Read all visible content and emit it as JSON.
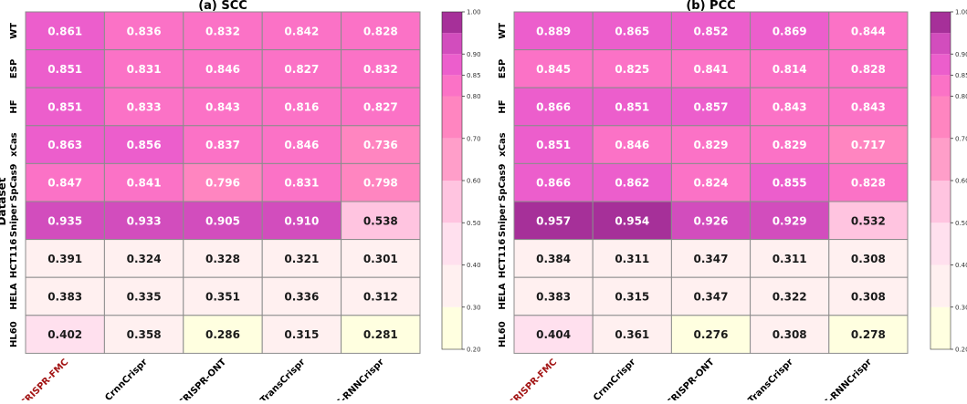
{
  "chart_data": [
    {
      "type": "heatmap",
      "title": "(a) SCC",
      "ylabel": "Dataset",
      "rows": [
        "WT",
        "ESP",
        "HF",
        "xCas",
        "SpCas9",
        "Sniper",
        "HCT116",
        "HELA",
        "HL60"
      ],
      "columns": [
        "CRISPR-FMC",
        "CrnnCrispr",
        "CRISPR-ONT",
        "TransCrispr",
        "C-RNNCrispr"
      ],
      "highlight_column": "CRISPR-FMC",
      "values": [
        [
          0.861,
          0.836,
          0.832,
          0.842,
          0.828
        ],
        [
          0.851,
          0.831,
          0.846,
          0.827,
          0.832
        ],
        [
          0.851,
          0.833,
          0.843,
          0.816,
          0.827
        ],
        [
          0.863,
          0.856,
          0.837,
          0.846,
          0.736
        ],
        [
          0.847,
          0.841,
          0.796,
          0.831,
          0.798
        ],
        [
          0.935,
          0.933,
          0.905,
          0.91,
          0.538
        ],
        [
          0.391,
          0.324,
          0.328,
          0.321,
          0.301
        ],
        [
          0.383,
          0.335,
          0.351,
          0.336,
          0.312
        ],
        [
          0.402,
          0.358,
          0.286,
          0.315,
          0.281
        ]
      ],
      "colorbar_range": [
        0.2,
        1.0
      ],
      "colorbar_ticks": [
        "1.00",
        "0.90",
        "0.85",
        "0.80",
        "0.70",
        "0.60",
        "0.50",
        "0.40",
        "0.30",
        "0.20"
      ]
    },
    {
      "type": "heatmap",
      "title": "(b) PCC",
      "ylabel": "",
      "rows": [
        "WT",
        "ESP",
        "HF",
        "xCas",
        "SpCas9",
        "Sniper",
        "HCT116",
        "HELA",
        "HL60"
      ],
      "columns": [
        "CRISPR-FMC",
        "CrnnCrispr",
        "CRISPR-ONT",
        "TransCrispr",
        "C-RNNCrispr"
      ],
      "highlight_column": "CRISPR-FMC",
      "values": [
        [
          0.889,
          0.865,
          0.852,
          0.869,
          0.844
        ],
        [
          0.845,
          0.825,
          0.841,
          0.814,
          0.828
        ],
        [
          0.866,
          0.851,
          0.857,
          0.843,
          0.843
        ],
        [
          0.851,
          0.846,
          0.829,
          0.829,
          0.717
        ],
        [
          0.866,
          0.862,
          0.824,
          0.855,
          0.828
        ],
        [
          0.957,
          0.954,
          0.926,
          0.929,
          0.532
        ],
        [
          0.384,
          0.311,
          0.347,
          0.311,
          0.308
        ],
        [
          0.383,
          0.315,
          0.347,
          0.322,
          0.308
        ],
        [
          0.404,
          0.361,
          0.276,
          0.308,
          0.278
        ]
      ],
      "colorbar_range": [
        0.2,
        1.0
      ],
      "colorbar_ticks": [
        "1.00",
        "0.90",
        "0.85",
        "0.80",
        "0.70",
        "0.60",
        "0.50",
        "0.40",
        "0.30",
        "0.20"
      ]
    }
  ],
  "colors": {
    "grid_line": "#8c8c8c",
    "highlight_label": "#a31515",
    "bins": [
      "#ffffe0",
      "#fff0f0",
      "#ffe0ee",
      "#ffc4e0",
      "#ff9ec9",
      "#ff85c0",
      "#fb72c6",
      "#ec5ecc",
      "#d24dbd",
      "#a63099"
    ]
  }
}
